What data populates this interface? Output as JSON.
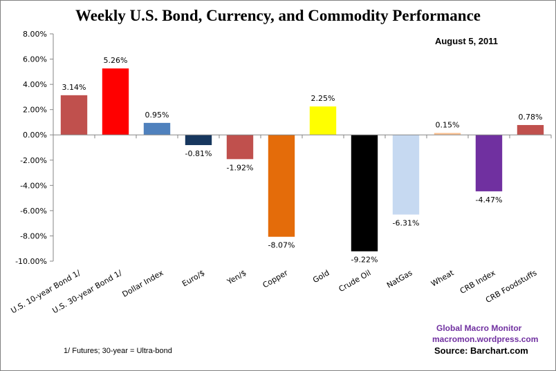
{
  "chart_data": {
    "type": "bar",
    "title": "Weekly U.S. Bond, Currency, and Commodity Performance",
    "subtitle": "August 5, 2011",
    "xlabel": "",
    "ylabel": "",
    "ylim": [
      -10,
      8
    ],
    "yticks": [
      8,
      6,
      4,
      2,
      0,
      -2,
      -4,
      -6,
      -8,
      -10
    ],
    "ytick_labels": [
      "8.00%",
      "6.00%",
      "4.00%",
      "2.00%",
      "0.00%",
      "-2.00%",
      "-4.00%",
      "-6.00%",
      "-8.00%",
      "-10.00%"
    ],
    "grid": false,
    "legend": "none",
    "categories": [
      "U.S. 10-year Bond 1/",
      "U.S. 30-year Bond 1/",
      "Dollar Index",
      "Euro/$",
      "Yen/$",
      "Copper",
      "Gold",
      "Crude Oil",
      "NatGas",
      "Wheat",
      "CRB Index",
      "CRB Foodstuffs"
    ],
    "values": [
      3.14,
      5.26,
      0.95,
      -0.81,
      -1.92,
      -8.07,
      2.25,
      -9.22,
      -6.31,
      0.15,
      -4.47,
      0.78
    ],
    "data_labels": [
      "3.14%",
      "5.26%",
      "0.95%",
      "-0.81%",
      "-1.92%",
      "-8.07%",
      "2.25%",
      "-9.22%",
      "-6.31%",
      "0.15%",
      "-4.47%",
      "0.78%"
    ],
    "colors": [
      "#c0504d",
      "#ff0000",
      "#4f81bd",
      "#17375e",
      "#c0504d",
      "#e46c0a",
      "#ffff00",
      "#000000",
      "#c6d9f1",
      "#fac090",
      "#7030a0",
      "#c0504d"
    ]
  },
  "footnote": "1/ Futures; 30-year = Ultra-bond",
  "credits": {
    "line1": "Global Macro Monitor",
    "line2": "macromon.wordpress.com",
    "source": "Source:  Barchart.com"
  }
}
